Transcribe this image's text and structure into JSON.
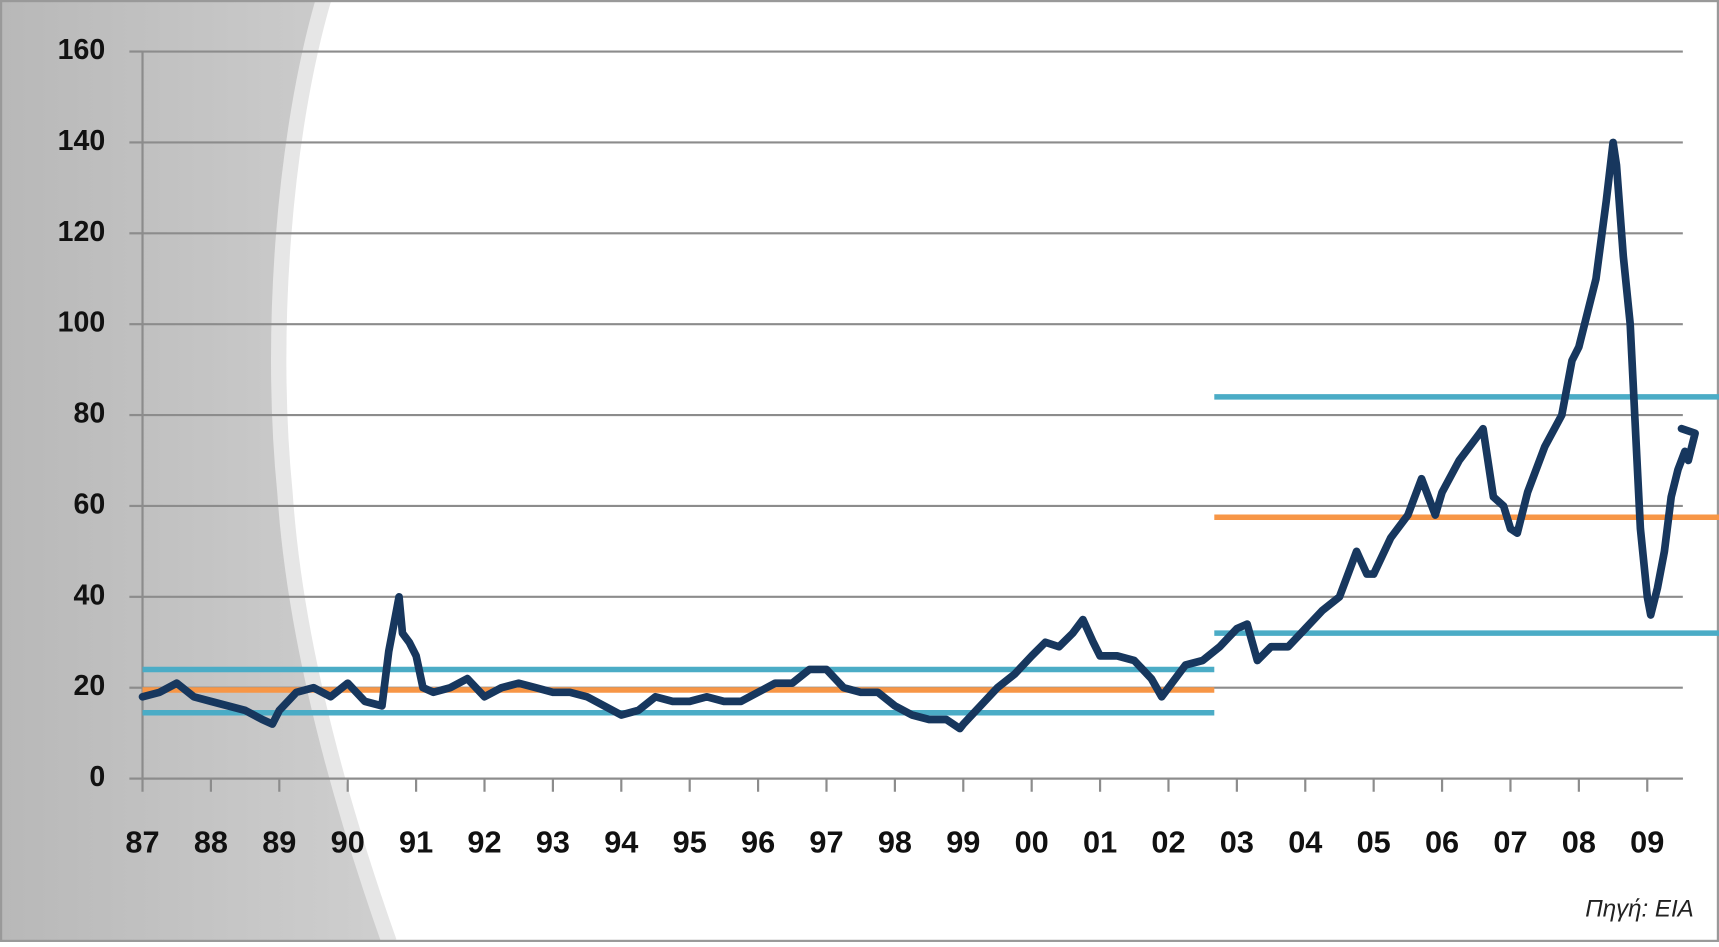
{
  "chart_data": {
    "type": "line",
    "source": "Πηγή: EIA",
    "xlim": [
      1987,
      2009.52
    ],
    "ylim": [
      0,
      160
    ],
    "yticks": [
      0,
      20,
      40,
      60,
      80,
      100,
      120,
      140,
      160
    ],
    "xticks": [
      {
        "value": 1987,
        "label": "87"
      },
      {
        "value": 1988,
        "label": "88"
      },
      {
        "value": 1989,
        "label": "89"
      },
      {
        "value": 1990,
        "label": "90"
      },
      {
        "value": 1991,
        "label": "91"
      },
      {
        "value": 1992,
        "label": "92"
      },
      {
        "value": 1993,
        "label": "93"
      },
      {
        "value": 1994,
        "label": "94"
      },
      {
        "value": 1995,
        "label": "95"
      },
      {
        "value": 1996,
        "label": "96"
      },
      {
        "value": 1997,
        "label": "97"
      },
      {
        "value": 1998,
        "label": "98"
      },
      {
        "value": 1999,
        "label": "99"
      },
      {
        "value": 2000,
        "label": "00"
      },
      {
        "value": 2001,
        "label": "01"
      },
      {
        "value": 2002,
        "label": "02"
      },
      {
        "value": 2003,
        "label": "03"
      },
      {
        "value": 2004,
        "label": "04"
      },
      {
        "value": 2005,
        "label": "05"
      },
      {
        "value": 2006,
        "label": "06"
      },
      {
        "value": 2007,
        "label": "07"
      },
      {
        "value": 2008,
        "label": "08"
      },
      {
        "value": 2009,
        "label": "09"
      }
    ],
    "grid": true,
    "series": [
      {
        "color": "#17375e",
        "x": [
          1987.0,
          1987.25,
          1987.5,
          1987.75,
          1988.0,
          1988.25,
          1988.5,
          1988.75,
          1988.9,
          1989.0,
          1989.25,
          1989.5,
          1989.75,
          1990.0,
          1990.25,
          1990.5,
          1990.6,
          1990.75,
          1990.8,
          1990.9,
          1991.0,
          1991.1,
          1991.25,
          1991.5,
          1991.75,
          1992.0,
          1992.25,
          1992.5,
          1992.75,
          1993.0,
          1993.25,
          1993.5,
          1993.75,
          1994.0,
          1994.25,
          1994.5,
          1994.75,
          1995.0,
          1995.25,
          1995.5,
          1995.75,
          1996.0,
          1996.25,
          1996.5,
          1996.75,
          1997.0,
          1997.25,
          1997.5,
          1997.75,
          1998.0,
          1998.25,
          1998.5,
          1998.75,
          1998.95,
          1999.0,
          1999.25,
          1999.5,
          1999.75,
          2000.0,
          2000.2,
          2000.4,
          2000.6,
          2000.75,
          2000.9,
          2001.0,
          2001.25,
          2001.5,
          2001.75,
          2001.9,
          2002.0,
          2002.25,
          2002.5,
          2002.75,
          2003.0,
          2003.15,
          2003.3,
          2003.5,
          2003.75,
          2004.0,
          2004.25,
          2004.5,
          2004.75,
          2004.9,
          2005.0,
          2005.25,
          2005.5,
          2005.7,
          2005.9,
          2006.0,
          2006.25,
          2006.5,
          2006.6,
          2006.75,
          2006.9,
          2007.0,
          2007.1,
          2007.25,
          2007.5,
          2007.75,
          2007.9,
          2008.0,
          2008.25,
          2008.4,
          2008.5,
          2008.55,
          2008.65,
          2008.75,
          2008.85,
          2008.9,
          2009.0,
          2009.05,
          2009.15,
          2009.25,
          2009.35,
          2009.45,
          2009.55,
          2009.6,
          2009.7,
          2009.5
        ],
        "values": [
          18,
          19,
          21,
          18,
          17,
          16,
          15,
          13,
          12,
          15,
          19,
          20,
          18,
          21,
          17,
          16,
          28,
          40,
          32,
          30,
          27,
          20,
          19,
          20,
          22,
          18,
          20,
          21,
          20,
          19,
          19,
          18,
          16,
          14,
          15,
          18,
          17,
          17,
          18,
          17,
          17,
          19,
          21,
          21,
          24,
          24,
          20,
          19,
          19,
          16,
          14,
          13,
          13,
          11,
          12,
          16,
          20,
          23,
          27,
          30,
          29,
          32,
          35,
          30,
          27,
          27,
          26,
          22,
          18,
          20,
          25,
          26,
          29,
          33,
          34,
          26,
          29,
          29,
          33,
          37,
          40,
          50,
          45,
          45,
          53,
          58,
          66,
          58,
          63,
          70,
          75,
          77,
          62,
          60,
          55,
          54,
          63,
          73,
          80,
          92,
          95,
          110,
          127,
          140,
          135,
          115,
          100,
          70,
          55,
          40,
          36,
          42,
          50,
          62,
          68,
          72,
          70,
          76,
          77
        ]
      }
    ],
    "reference_lines": [
      {
        "x": [
          1987,
          2002.67
        ],
        "y": 24,
        "color": "#4bacc6"
      },
      {
        "x": [
          1987,
          2002.67
        ],
        "y": 19.5,
        "color": "#f79646"
      },
      {
        "x": [
          1987,
          2002.67
        ],
        "y": 14.5,
        "color": "#4bacc6"
      },
      {
        "x": [
          2002.67,
          2010.05
        ],
        "y": 84,
        "color": "#4bacc6"
      },
      {
        "x": [
          2002.67,
          2010.05
        ],
        "y": 57.5,
        "color": "#f79646"
      },
      {
        "x": [
          2002.67,
          2010.05
        ],
        "y": 32,
        "color": "#4bacc6"
      }
    ]
  }
}
